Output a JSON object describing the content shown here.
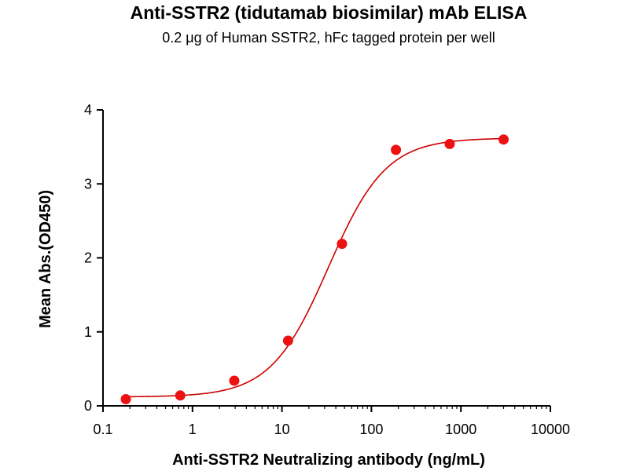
{
  "chart_data": {
    "type": "scatter",
    "title": "Anti-SSTR2 (tidutamab biosimilar) mAb ELISA",
    "subtitle": "0.2 μg of Human SSTR2, hFc tagged protein per well",
    "xlabel": "Anti-SSTR2 Neutralizing antibody (ng/mL)",
    "ylabel": "Mean Abs.(OD450)",
    "x_scale": "log",
    "xlim": [
      0.1,
      10000
    ],
    "ylim": [
      0,
      4
    ],
    "x_ticks": [
      0.1,
      1,
      10,
      100,
      1000,
      10000
    ],
    "x_tick_labels": [
      "0.1",
      "1",
      "10",
      "100",
      "1000",
      "10000"
    ],
    "y_ticks": [
      0,
      1,
      2,
      3,
      4
    ],
    "y_tick_labels": [
      "0",
      "1",
      "2",
      "3",
      "4"
    ],
    "grid": false,
    "point_color": "#ee1111",
    "curve_color": "#cc0000",
    "points": [
      {
        "x": 0.18,
        "y": 0.09
      },
      {
        "x": 0.73,
        "y": 0.14
      },
      {
        "x": 2.93,
        "y": 0.34
      },
      {
        "x": 11.7,
        "y": 0.88
      },
      {
        "x": 46.9,
        "y": 2.19
      },
      {
        "x": 188,
        "y": 3.46
      },
      {
        "x": 750,
        "y": 3.54
      },
      {
        "x": 3000,
        "y": 3.6
      }
    ],
    "fit": {
      "bottom": 0.12,
      "top": 3.62,
      "ec50": 33,
      "hill": 1.35
    }
  }
}
